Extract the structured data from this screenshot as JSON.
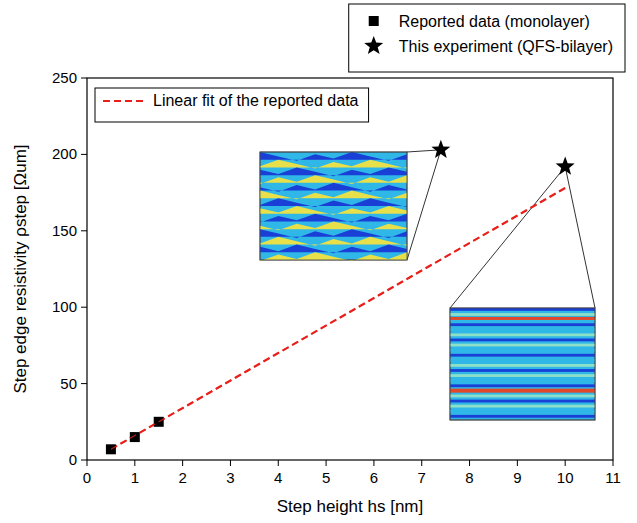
{
  "chart_data": {
    "type": "scatter",
    "x_label": "Step height hs [nm]",
    "y_label": "Step edge resistivity ρstep [Ωum]",
    "xlim": [
      0,
      11
    ],
    "xticks": [
      0,
      1,
      2,
      3,
      4,
      5,
      6,
      7,
      8,
      9,
      10,
      11
    ],
    "ylim": [
      0,
      250
    ],
    "yticks": [
      0,
      50,
      100,
      150,
      200,
      250
    ],
    "grid": false,
    "legend": "top-right",
    "series": [
      {
        "name": "Reported data (monolayer)",
        "type": "scatter",
        "marker": "square",
        "color": "#000000",
        "x": [
          0.5,
          1.0,
          1.5
        ],
        "values": [
          7,
          15,
          25
        ]
      },
      {
        "name": "This experiment (QFS-bilayer)",
        "type": "scatter",
        "marker": "star",
        "color": "#000000",
        "x": [
          7.4,
          10
        ],
        "values": [
          203,
          192
        ]
      },
      {
        "name": "Linear fit of the reported data",
        "type": "line",
        "line_style": "dashed",
        "color": "#e8201c",
        "x": [
          0.5,
          10
        ],
        "values": [
          7,
          178
        ]
      }
    ]
  }
}
